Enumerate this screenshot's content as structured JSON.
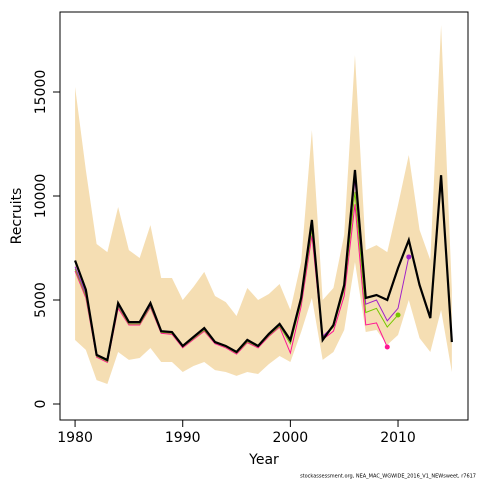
{
  "chart_data": {
    "type": "line",
    "x_label": "Year",
    "y_label": "Recruits",
    "footnote": "stockassessment.org, NEA_MAC_WGWIDE_2016_V1_NEWsweet, r7617",
    "x": [
      1980,
      1981,
      1982,
      1983,
      1984,
      1985,
      1986,
      1987,
      1988,
      1989,
      1990,
      1991,
      1992,
      1993,
      1994,
      1995,
      1996,
      1997,
      1998,
      1999,
      2000,
      2001,
      2002,
      2003,
      2004,
      2005,
      2006,
      2007,
      2008,
      2009,
      2010,
      2011,
      2012,
      2013,
      2014,
      2015
    ],
    "xlim": [
      1978.6,
      2016.5
    ],
    "xticks": [
      1980,
      1990,
      2000,
      2010
    ],
    "ylim": [
      -769,
      18846
    ],
    "yticks": [
      0,
      5000,
      10000,
      15000
    ],
    "band": {
      "color": "#f5deb3",
      "lower": [
        3080,
        2600,
        1150,
        960,
        2500,
        2120,
        2210,
        2690,
        2020,
        2020,
        1540,
        1830,
        2020,
        1630,
        1540,
        1350,
        1540,
        1440,
        1920,
        2310,
        2020,
        3460,
        5100,
        2120,
        2500,
        3560,
        6830,
        3460,
        3560,
        2840,
        3320,
        5000,
        3170,
        2500,
        4520,
        1540
      ],
      "upper": [
        15240,
        11250,
        7690,
        7300,
        9470,
        7400,
        7020,
        8600,
        6060,
        6060,
        5000,
        5630,
        6350,
        5190,
        4900,
        4230,
        5580,
        5000,
        5290,
        5770,
        4520,
        6830,
        13170,
        5000,
        5580,
        8130,
        16780,
        7400,
        7640,
        7300,
        9570,
        11970,
        8370,
        6920,
        18220,
        5480
      ]
    },
    "series": [
      {
        "color": "#ff1493",
        "width": 1,
        "values": [
          6400,
          5100,
          2250,
          2000,
          4600,
          3800,
          3800,
          4650,
          3400,
          3350,
          2700,
          3100,
          3500,
          2900,
          2700,
          2400,
          2950,
          2700,
          3250,
          3700,
          2450,
          4700,
          8100,
          3100,
          3500,
          5200,
          9600,
          3800,
          3900,
          2740,
          null,
          null,
          null,
          null,
          null,
          null
        ]
      },
      {
        "color": "#76c800",
        "width": 1,
        "values": [
          6500,
          5200,
          2300,
          2050,
          4700,
          3850,
          3850,
          4700,
          3450,
          3400,
          2750,
          3150,
          3550,
          2950,
          2750,
          2450,
          3000,
          2750,
          3300,
          3750,
          2900,
          4900,
          8400,
          3200,
          3700,
          5500,
          10200,
          4400,
          4600,
          3700,
          4280,
          null,
          null,
          null,
          null,
          null
        ]
      },
      {
        "color": "#a020c8",
        "width": 1,
        "values": [
          6600,
          5300,
          2330,
          2080,
          4750,
          3900,
          3900,
          4750,
          3480,
          3430,
          2770,
          3180,
          3600,
          2960,
          2770,
          2480,
          3040,
          2770,
          3330,
          3800,
          3000,
          5000,
          8600,
          3250,
          3750,
          5600,
          10800,
          4800,
          5000,
          4000,
          4600,
          7070,
          null,
          null,
          null,
          null
        ]
      },
      {
        "color": "#000000",
        "width": 2.2,
        "values": [
          6900,
          5500,
          2360,
          2115,
          4850,
          3940,
          3940,
          4850,
          3500,
          3460,
          2790,
          3220,
          3650,
          2980,
          2790,
          2500,
          3080,
          2790,
          3370,
          3850,
          3080,
          5100,
          8850,
          3080,
          3800,
          5720,
          11250,
          5100,
          5240,
          5000,
          6540,
          7880,
          5720,
          4130,
          11000,
          2980
        ]
      }
    ]
  }
}
